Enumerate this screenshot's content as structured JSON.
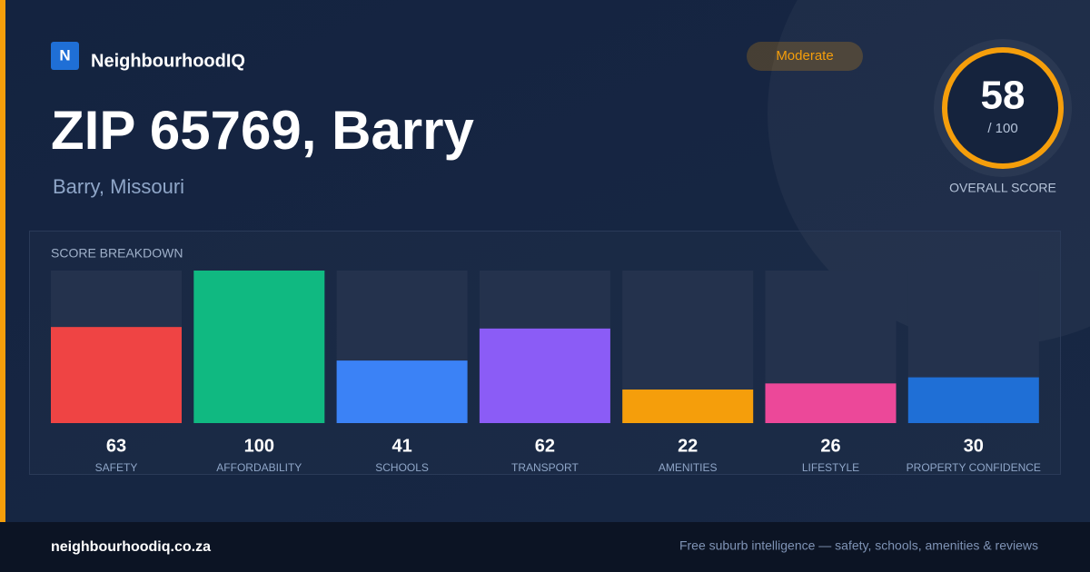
{
  "brand": {
    "logo": "N",
    "name": "NeighbourhoodIQ"
  },
  "title": "ZIP 65769, Barry",
  "subtitle": "Barry, Missouri",
  "badge": "Moderate",
  "score": {
    "value": 58,
    "max_label": "/ 100",
    "label": "OVERALL SCORE"
  },
  "chart_data": {
    "type": "bar",
    "title": "SCORE BREAKDOWN",
    "categories": [
      "SAFETY",
      "AFFORDABILITY",
      "SCHOOLS",
      "TRANSPORT",
      "AMENITIES",
      "LIFESTYLE",
      "PROPERTY CONFIDENCE"
    ],
    "values": [
      63,
      100,
      41,
      62,
      22,
      26,
      30
    ],
    "colors": [
      "#ef4444",
      "#10b981",
      "#3b82f6",
      "#8b5cf6",
      "#f59e0b",
      "#ec4899",
      "#1f6fd6"
    ],
    "ylim": [
      0,
      100
    ]
  },
  "footer": {
    "site": "neighbourhoodiq.co.za",
    "tagline": "Free suburb intelligence — safety, schools, amenities & reviews"
  }
}
